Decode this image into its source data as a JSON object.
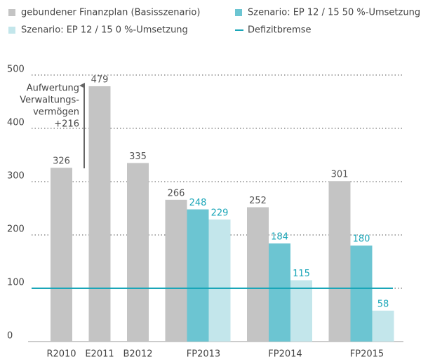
{
  "chart_data": {
    "type": "bar",
    "categories": [
      "R2010",
      "E2011",
      "B2012",
      "FP2013",
      "FP2014",
      "FP2015"
    ],
    "series": [
      {
        "name": "gebundener Finanzplan (Basisszenario)",
        "color": "#c4c4c4",
        "values": [
          326,
          479,
          335,
          266,
          252,
          301
        ]
      },
      {
        "name": "Szenario: EP 12 / 15  50 %-Umsetzung",
        "color": "#6cc5d2",
        "values": [
          null,
          null,
          null,
          248,
          184,
          180
        ]
      },
      {
        "name": "Szenario: EP 12 / 15  0 %-Umsetzung",
        "color": "#c3e6eb",
        "values": [
          null,
          null,
          null,
          229,
          115,
          58
        ]
      }
    ],
    "threshold": {
      "name": "Defizitbremse",
      "value": 100,
      "color": "#1aa6b8"
    },
    "annotation": [
      "Aufwertung",
      "Verwaltungs-",
      "vermögen",
      "+216"
    ],
    "ylim": [
      0,
      500
    ],
    "yticks": [
      0,
      100,
      200,
      300,
      400,
      500
    ],
    "grid": true
  }
}
